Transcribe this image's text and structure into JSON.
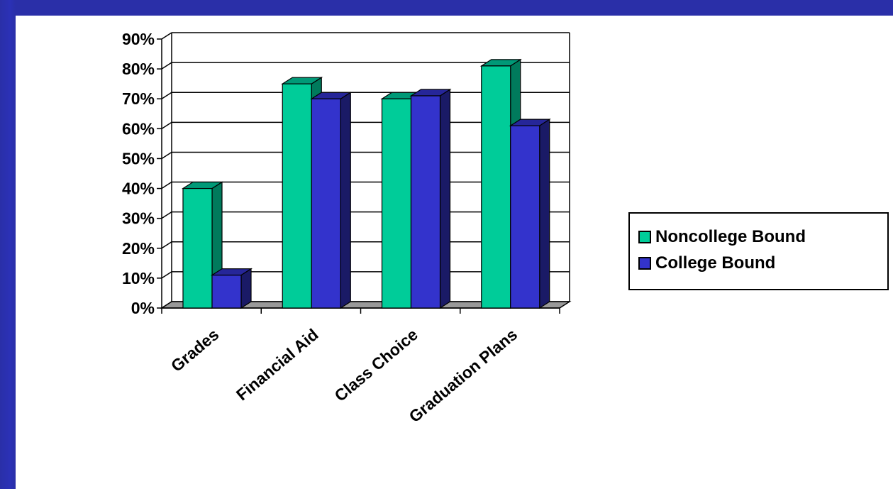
{
  "chart_data": {
    "type": "bar",
    "title": "",
    "xlabel": "",
    "ylabel": "",
    "categories": [
      "Grades",
      "Financial Aid",
      "Class Choice",
      "Graduation Plans"
    ],
    "series": [
      {
        "name": "Noncollege Bound",
        "values": [
          40,
          75,
          70,
          81
        ],
        "color": "#00cc99",
        "side_color": "#007a5c",
        "top_color": "#009977"
      },
      {
        "name": "College Bound",
        "values": [
          11,
          70,
          71,
          61
        ],
        "color": "#3333cc",
        "side_color": "#1a1a66",
        "top_color": "#262699"
      }
    ],
    "ylim": [
      0,
      90
    ],
    "yticks": [
      "0%",
      "10%",
      "20%",
      "30%",
      "40%",
      "50%",
      "60%",
      "70%",
      "80%",
      "90%"
    ],
    "ytick_values": [
      0,
      10,
      20,
      30,
      40,
      50,
      60,
      70,
      80,
      90
    ],
    "grid": true,
    "legend_position": "right"
  },
  "colors": {
    "background": "#2a2fa8",
    "floor": "#999999",
    "wall": "#ffffff"
  }
}
